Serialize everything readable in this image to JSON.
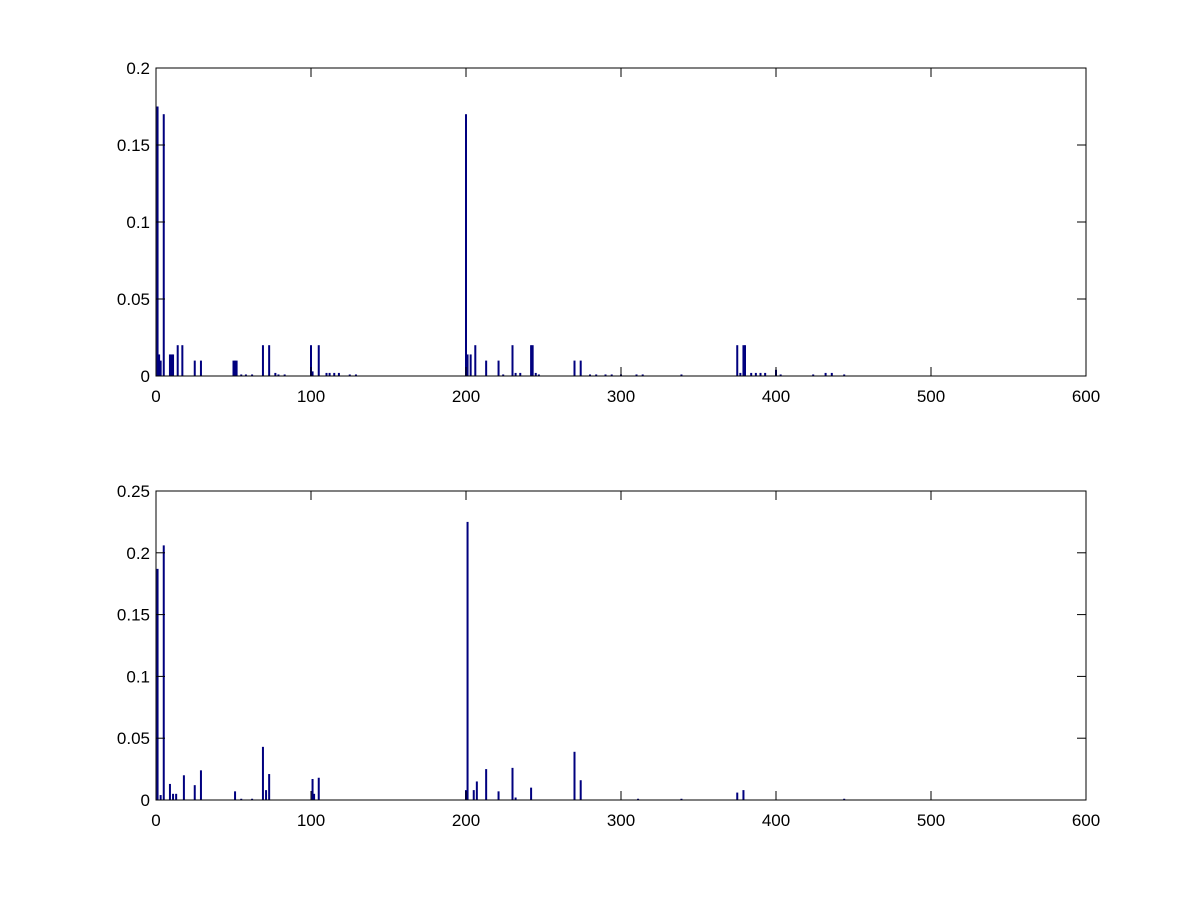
{
  "chart_data": [
    {
      "type": "bar",
      "color": "#00007f",
      "x": [
        1,
        2,
        3,
        5,
        9,
        10,
        11,
        14,
        17,
        25,
        29,
        50,
        51,
        52,
        55,
        58,
        62,
        69,
        73,
        77,
        79,
        83,
        100,
        101,
        105,
        110,
        112,
        115,
        118,
        125,
        129,
        200,
        201,
        203,
        206,
        213,
        221,
        224,
        230,
        232,
        235,
        242,
        243,
        245,
        247,
        270,
        274,
        280,
        284,
        290,
        294,
        300,
        310,
        314,
        339,
        375,
        377,
        379,
        380,
        384,
        387,
        390,
        393,
        400,
        403,
        424,
        432,
        436,
        444
      ],
      "values": [
        0.175,
        0.014,
        0.01,
        0.17,
        0.014,
        0.014,
        0.014,
        0.02,
        0.02,
        0.01,
        0.01,
        0.01,
        0.01,
        0.01,
        0.001,
        0.001,
        0.001,
        0.02,
        0.02,
        0.002,
        0.001,
        0.001,
        0.02,
        0.003,
        0.02,
        0.002,
        0.002,
        0.002,
        0.002,
        0.001,
        0.001,
        0.17,
        0.014,
        0.014,
        0.02,
        0.01,
        0.01,
        0.001,
        0.02,
        0.002,
        0.002,
        0.02,
        0.02,
        0.002,
        0.001,
        0.01,
        0.01,
        0.001,
        0.001,
        0.001,
        0.001,
        0.001,
        0.001,
        0.001,
        0.001,
        0.02,
        0.002,
        0.02,
        0.02,
        0.002,
        0.002,
        0.002,
        0.002,
        0.004,
        0.001,
        0.001,
        0.002,
        0.002,
        0.001
      ],
      "xlim": [
        0,
        600
      ],
      "xticks": [
        0,
        100,
        200,
        300,
        400,
        500,
        600
      ],
      "ylim": [
        0,
        0.2
      ],
      "yticks": [
        0,
        0.05,
        0.1,
        0.15,
        0.2
      ]
    },
    {
      "type": "bar",
      "color": "#00007f",
      "x": [
        1,
        3,
        5,
        9,
        11,
        13,
        18,
        25,
        29,
        51,
        55,
        62,
        69,
        71,
        73,
        101,
        102,
        105,
        200,
        201,
        205,
        207,
        213,
        221,
        230,
        232,
        242,
        270,
        274,
        311,
        339,
        375,
        379,
        444
      ],
      "values": [
        0.187,
        0.004,
        0.206,
        0.013,
        0.005,
        0.005,
        0.02,
        0.012,
        0.024,
        0.007,
        0.001,
        0.001,
        0.043,
        0.008,
        0.021,
        0.017,
        0.005,
        0.018,
        0.008,
        0.225,
        0.008,
        0.015,
        0.025,
        0.007,
        0.026,
        0.002,
        0.01,
        0.039,
        0.016,
        0.001,
        0.001,
        0.006,
        0.008,
        0.001
      ],
      "xlim": [
        0,
        600
      ],
      "xticks": [
        0,
        100,
        200,
        300,
        400,
        500,
        600
      ],
      "ylim": [
        0,
        0.25
      ],
      "yticks": [
        0,
        0.05,
        0.1,
        0.15,
        0.2,
        0.25
      ]
    }
  ]
}
